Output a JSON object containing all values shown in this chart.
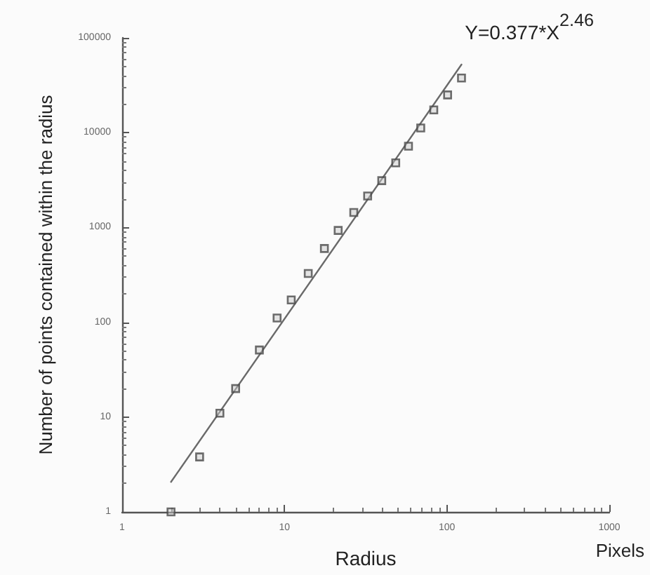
{
  "chart_data": {
    "type": "scatter",
    "xlabel": "Radius",
    "ylabel": "Number of points contained within the radius",
    "annotations": [
      "Y=0.377*X$^{2.46}$",
      "Pixels"
    ],
    "log": "xy",
    "grid": false,
    "marker": "square",
    "xlim": [
      1,
      1000
    ],
    "xticks": [
      1,
      10,
      100,
      1000
    ],
    "ylim": [
      1,
      100000
    ],
    "yticks": [
      1,
      10,
      100,
      1000,
      10000,
      100000
    ],
    "series": [
      {
        "color": "#4a4a4a",
        "x": [
          2,
          3,
          4,
          5,
          7,
          9,
          11,
          14,
          17.6,
          21.4,
          26.7,
          32.5,
          39.7,
          48.4,
          58,
          69,
          83,
          101,
          123
        ],
        "values": [
          1,
          3.8,
          11,
          20,
          51,
          111,
          172,
          327,
          600,
          930,
          1440,
          2150,
          3120,
          4800,
          7200,
          11200,
          17400,
          25000,
          37700
        ]
      },
      {
        "type": "line",
        "color": "#6a6a6a",
        "marker": "none",
        "line_style": "solid",
        "x": [
          2,
          123
        ],
        "values": [
          2.07,
          52300
        ]
      }
    ]
  }
}
